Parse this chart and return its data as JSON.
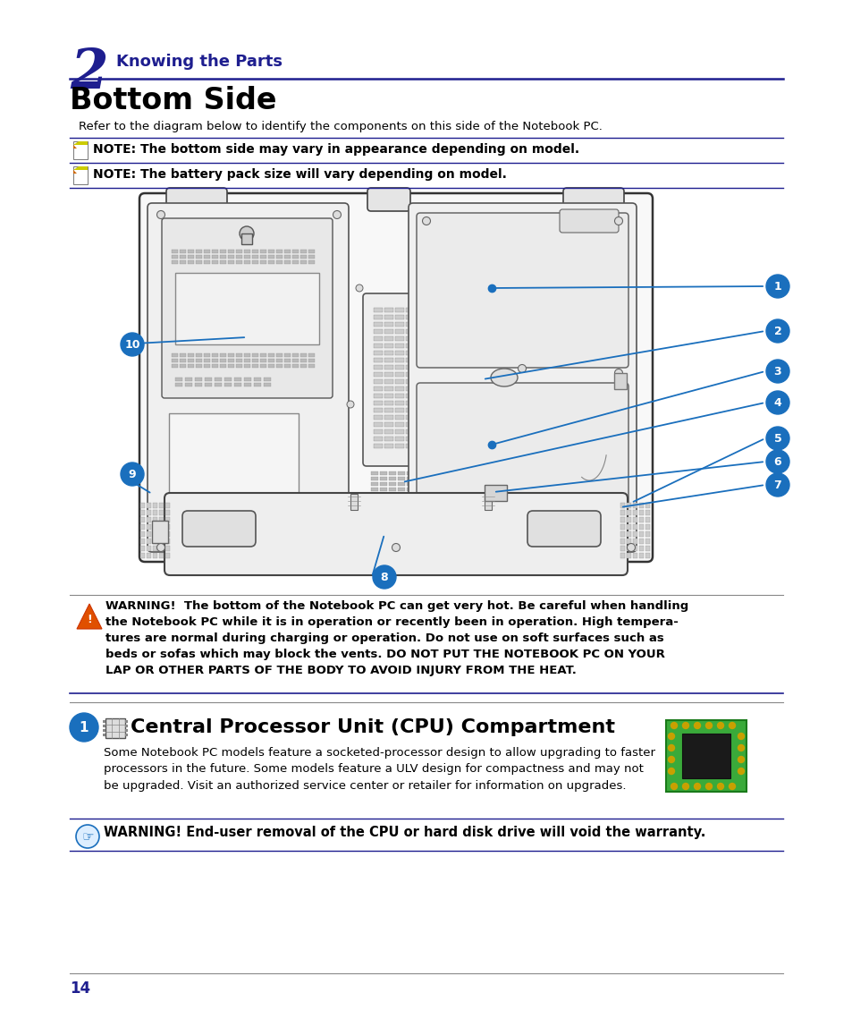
{
  "bg_color": "#ffffff",
  "blue_dark": "#1e1e8f",
  "black": "#000000",
  "chapter_num": "2",
  "chapter_title": "Knowing the Parts",
  "section_title": "Bottom Side",
  "intro_text": "Refer to the diagram below to identify the components on this side of the Notebook PC.",
  "note1": "NOTE: The bottom side may vary in appearance depending on model.",
  "note2": "NOTE: The battery pack size will vary depending on model.",
  "warning_text": "WARNING!  The bottom of the Notebook PC can get very hot. Be careful when handling\nthe Notebook PC while it is in operation or recently been in operation. High tempera-\ntures are normal during charging or operation. Do not use on soft surfaces such as\nbeds or sofas which may block the vents. DO NOT PUT THE NOTEBOOK PC ON YOUR\nLAP OR OTHER PARTS OF THE BODY TO AVOID INJURY FROM THE HEAT.",
  "section1_title": "Central Processor Unit (CPU) Compartment",
  "section1_text": "Some Notebook PC models feature a socketed-processor design to allow upgrading to faster\nprocessors in the future. Some models feature a ULV design for compactness and may not\nbe upgraded. Visit an authorized service center or retailer for information on upgrades.",
  "warning2_text": "WARNING! End-user removal of the CPU or hard disk drive will void the warranty.",
  "page_num": "14",
  "label_blue": "#1a6fbd",
  "label_bg": "#1a6fbd"
}
